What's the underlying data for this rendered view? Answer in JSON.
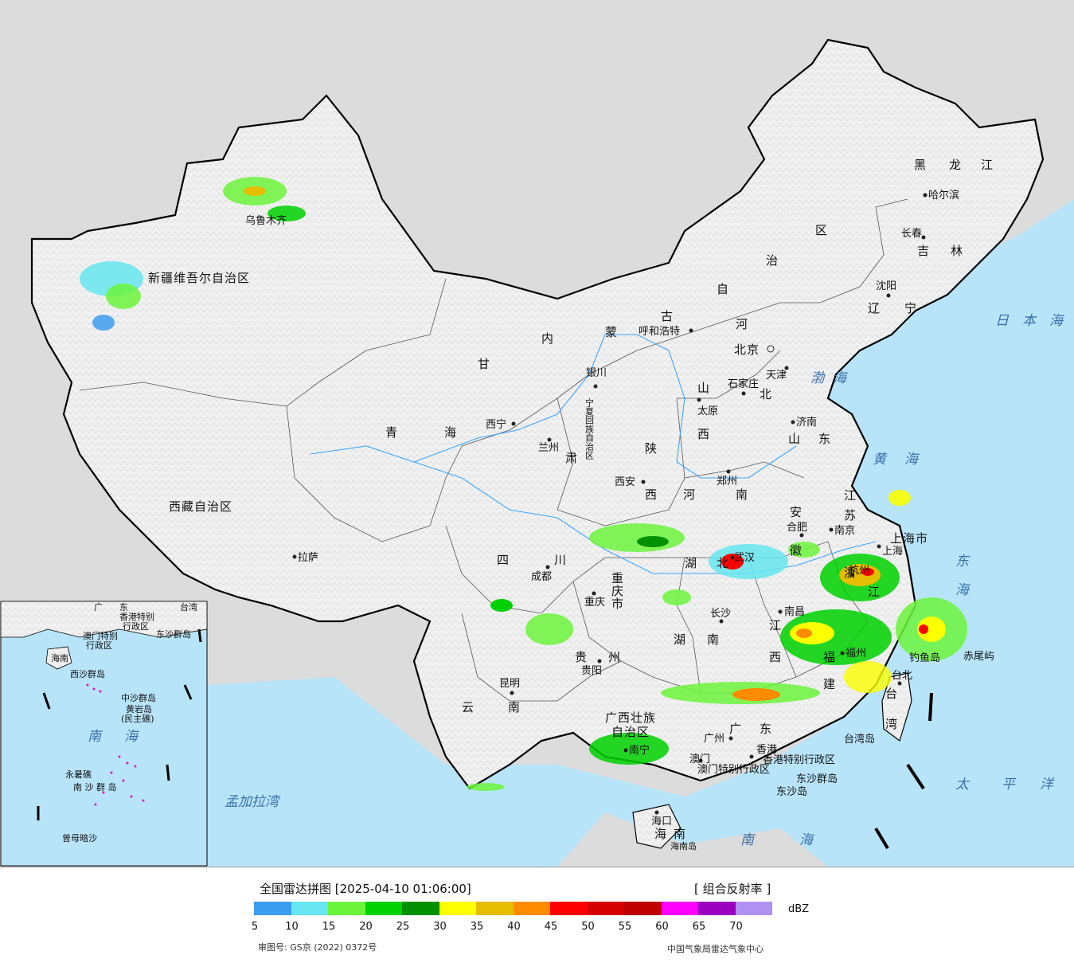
{
  "title": "全国雷达拼图 [2025-04-10 01:06:00]",
  "product": "[ 组合反射率 ]",
  "unit": "dBZ",
  "review_number": "审图号: GS京 (2022) 0372号",
  "organization": "中国气象局雷达气象中心",
  "legend": {
    "colors": [
      "#3c9df0",
      "#66e6f0",
      "#6cf53c",
      "#00d100",
      "#009000",
      "#fbff00",
      "#e6bd00",
      "#ff8c00",
      "#ff0000",
      "#d60000",
      "#be0000",
      "#ff00ff",
      "#9a00bd",
      "#b090f0"
    ],
    "ticks": [
      "5",
      "10",
      "15",
      "20",
      "25",
      "30",
      "35",
      "40",
      "45",
      "50",
      "55",
      "60",
      "65",
      "70"
    ]
  },
  "provinces": [
    "新疆维吾尔自治区",
    "西藏自治区",
    "青",
    "海",
    "甘",
    "肃",
    "内",
    "蒙",
    "古",
    "自",
    "治",
    "区",
    "宁夏回族自治区",
    "陕",
    "西",
    "山",
    "西",
    "河",
    "北",
    "河",
    "南",
    "山",
    "东",
    "四",
    "川",
    "重庆市",
    "湖",
    "北",
    "湖",
    "南",
    "贵",
    "州",
    "云",
    "南",
    "广西壮族",
    "自治区",
    "广",
    "东",
    "江",
    "西",
    "福",
    "建",
    "浙",
    "江",
    "安",
    "徽",
    "江",
    "苏",
    "上海市",
    "辽",
    "宁",
    "吉",
    "林",
    "黑",
    "龙",
    "江",
    "台",
    "湾",
    "海",
    "南",
    "香港特别行政区",
    "澳门特别行政区"
  ],
  "cities": [
    "乌鲁木齐",
    "拉萨",
    "西宁",
    "兰州",
    "银川",
    "呼和浩特",
    "北京",
    "天津",
    "石家庄",
    "太原",
    "济南",
    "郑州",
    "西安",
    "成都",
    "重庆",
    "贵阳",
    "昆明",
    "长沙",
    "武汉",
    "南昌",
    "合肥",
    "南京",
    "上海",
    "杭州",
    "福州",
    "台北",
    "广州",
    "南宁",
    "海口",
    "沈阳",
    "长春",
    "哈尔滨",
    "香港",
    "澳门"
  ],
  "seas": [
    "渤",
    "海",
    "黄",
    "海",
    "东",
    "海",
    "南",
    "海",
    "太",
    "平",
    "洋",
    "日",
    "本",
    "海",
    "孟加拉湾"
  ],
  "islands": [
    "台湾岛",
    "钓鱼岛",
    "赤尾屿",
    "东沙群岛",
    "东沙岛",
    "海南岛"
  ],
  "inset": {
    "labels": [
      "广",
      "东",
      "台湾",
      "香港特别",
      "行政区",
      "澳门特别",
      "行政区",
      "东沙群岛",
      "海南",
      "西沙群岛",
      "中沙群岛",
      "黄岩岛",
      "(民主礁)",
      "南",
      "海",
      "永暑礁",
      "南 沙 群 岛",
      "曾母暗沙"
    ]
  }
}
